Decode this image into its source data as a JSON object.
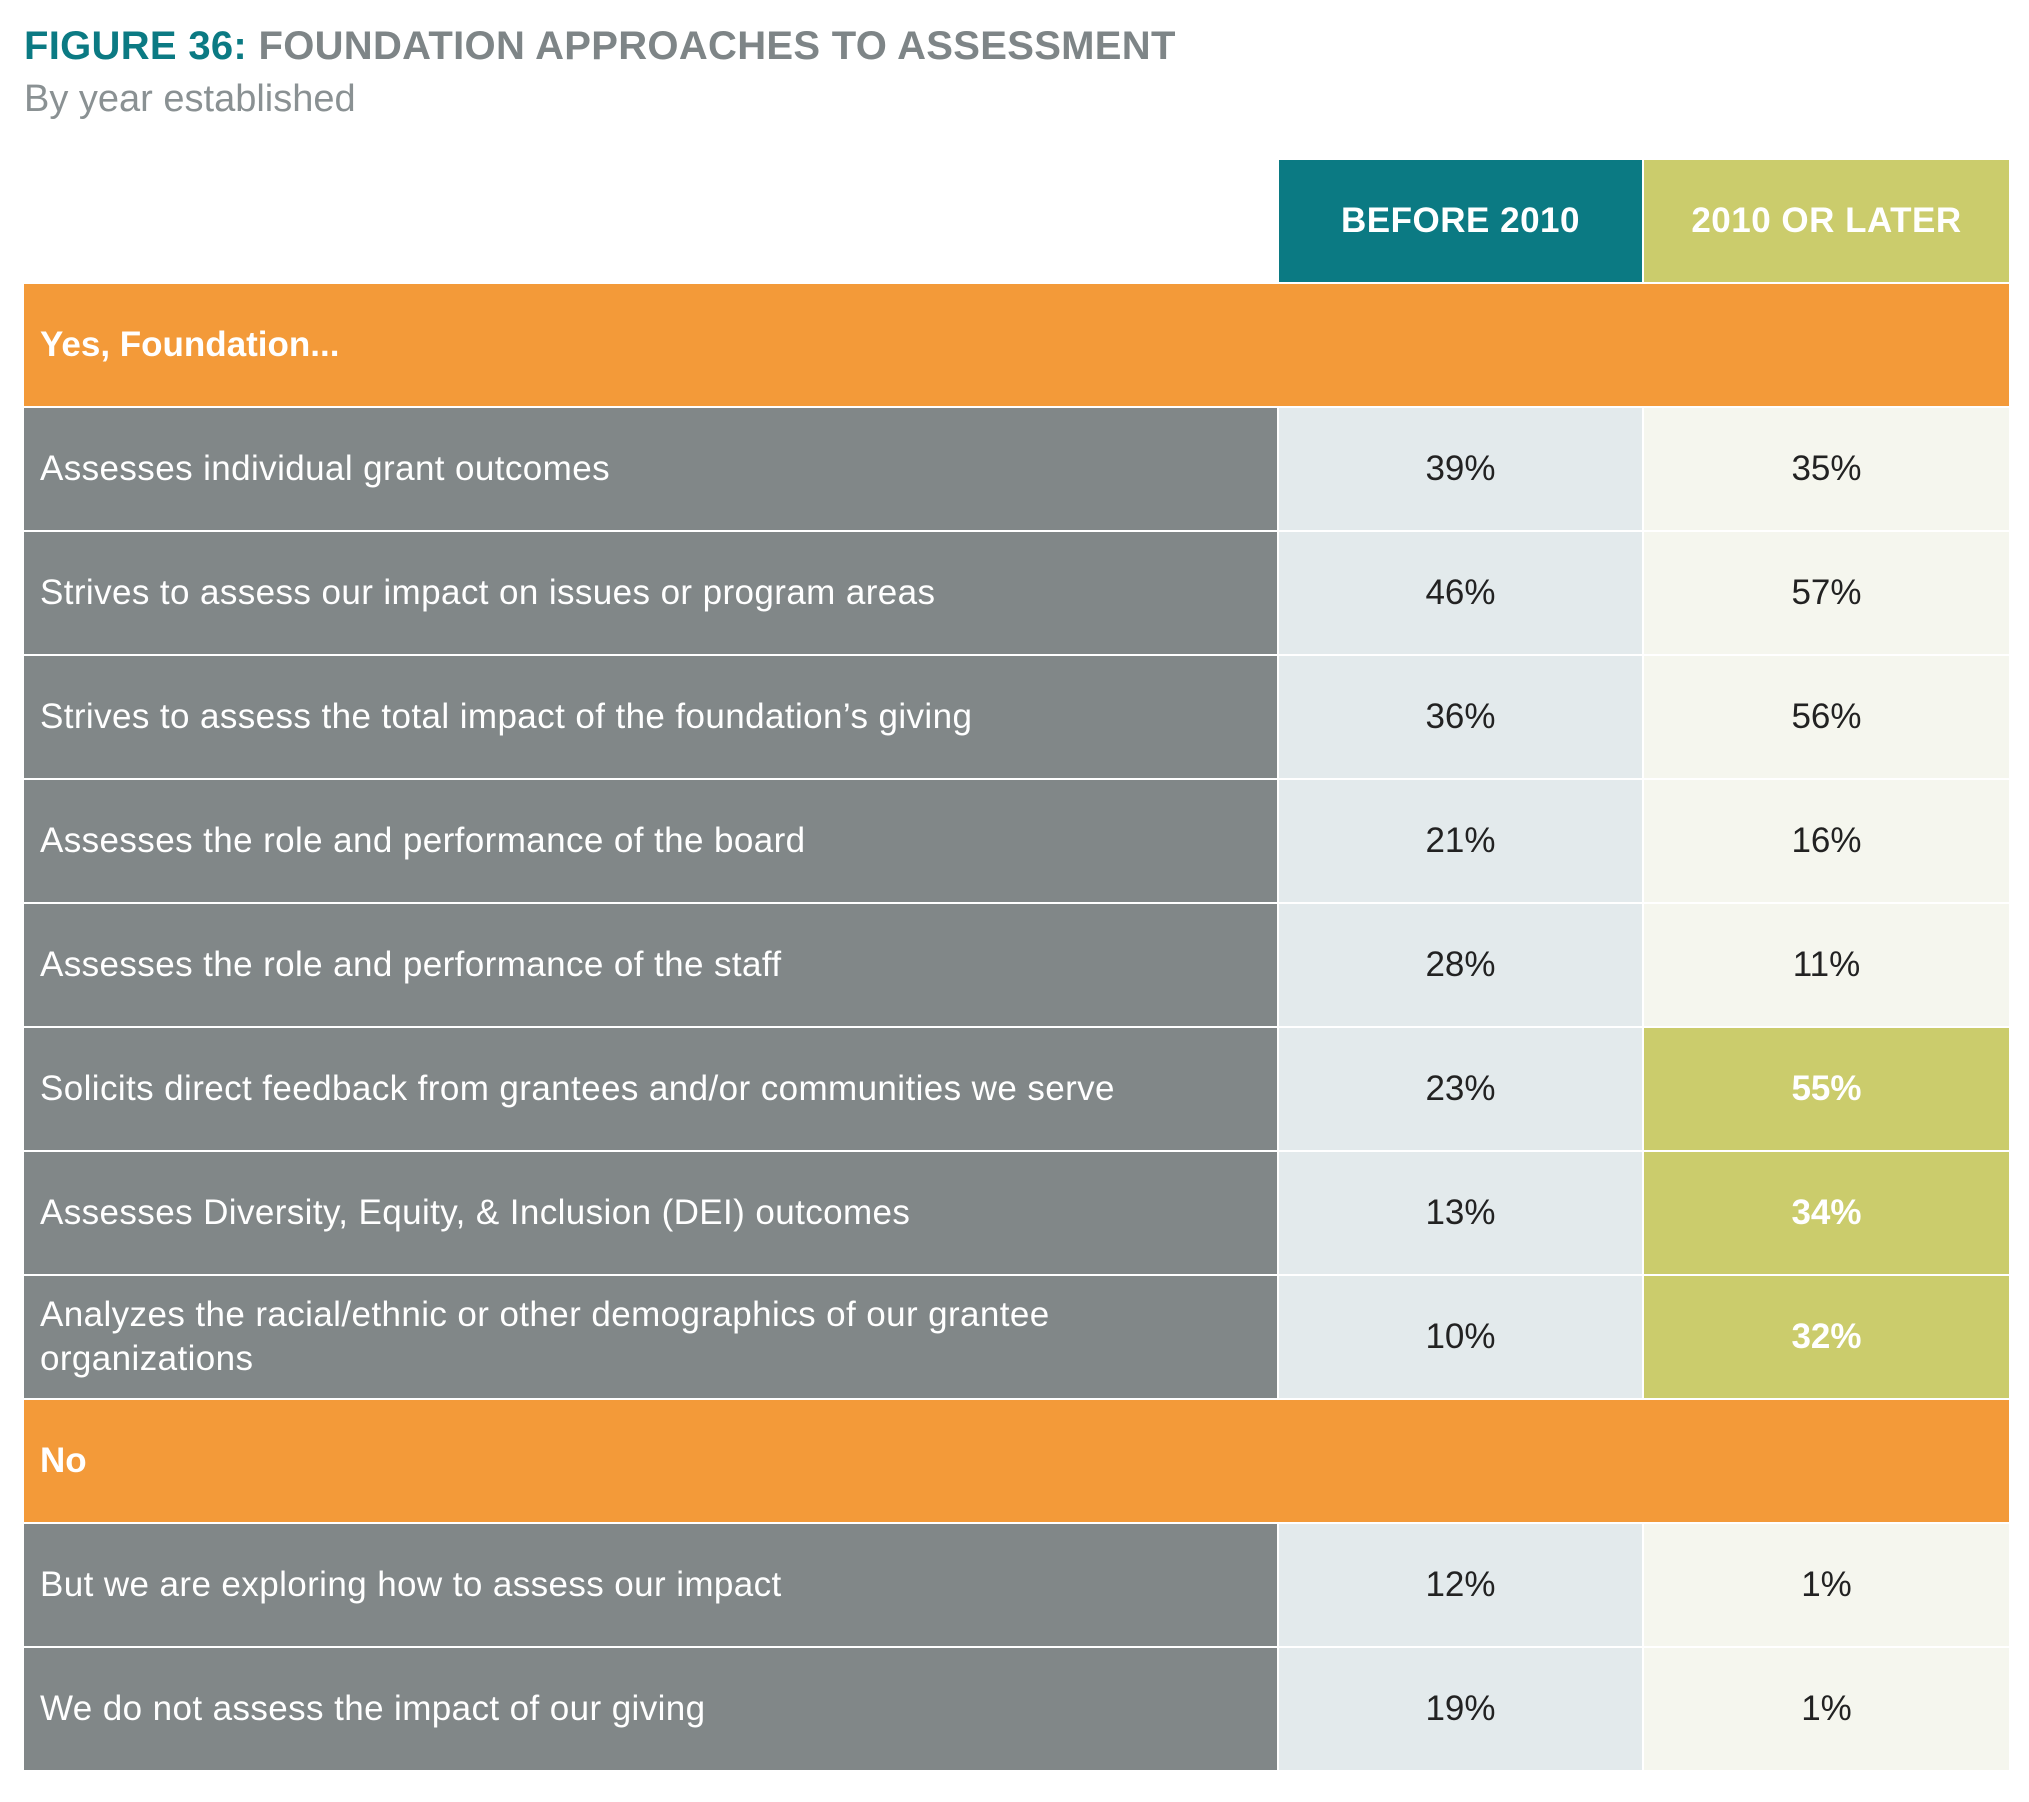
{
  "chart_data": {
    "type": "table",
    "title_prefix": "FIGURE 36:",
    "title": "FOUNDATION APPROACHES TO ASSESSMENT",
    "subtitle": "By year established",
    "columns": [
      "BEFORE 2010",
      "2010 OR LATER"
    ],
    "colors": {
      "before_header": "#0b7a83",
      "after_header": "#cbcc6c",
      "section": "#f39a39",
      "label": "#818788",
      "highlight": "#cbcc6c"
    },
    "sections": [
      {
        "name": "Yes, Foundation...",
        "rows": [
          {
            "label": "Assesses individual grant outcomes",
            "values": [
              "39%",
              "35%"
            ],
            "highlight": [
              false,
              false
            ]
          },
          {
            "label": "Strives to assess our impact on issues or program areas",
            "values": [
              "46%",
              "57%"
            ],
            "highlight": [
              false,
              false
            ]
          },
          {
            "label": "Strives to assess the total impact of the foundation’s giving",
            "values": [
              "36%",
              "56%"
            ],
            "highlight": [
              false,
              false
            ]
          },
          {
            "label": "Assesses the role and performance of the board",
            "values": [
              "21%",
              "16%"
            ],
            "highlight": [
              false,
              false
            ]
          },
          {
            "label": "Assesses the role and performance of the staff",
            "values": [
              "28%",
              "11%"
            ],
            "highlight": [
              false,
              false
            ]
          },
          {
            "label": "Solicits direct feedback from grantees and/or communities we serve",
            "values": [
              "23%",
              "55%"
            ],
            "highlight": [
              false,
              true
            ]
          },
          {
            "label": "Assesses Diversity, Equity, & Inclusion (DEI) outcomes",
            "values": [
              "13%",
              "34%"
            ],
            "highlight": [
              false,
              true
            ]
          },
          {
            "label": "Analyzes the racial/ethnic or other demographics of our grantee organizations",
            "values": [
              "10%",
              "32%"
            ],
            "highlight": [
              false,
              true
            ]
          }
        ]
      },
      {
        "name": "No",
        "rows": [
          {
            "label": "But we are exploring how to assess our impact",
            "values": [
              "12%",
              "1%"
            ],
            "highlight": [
              false,
              false
            ]
          },
          {
            "label": "We do not assess the impact of our giving",
            "values": [
              "19%",
              "1%"
            ],
            "highlight": [
              false,
              false
            ]
          }
        ]
      }
    ]
  }
}
